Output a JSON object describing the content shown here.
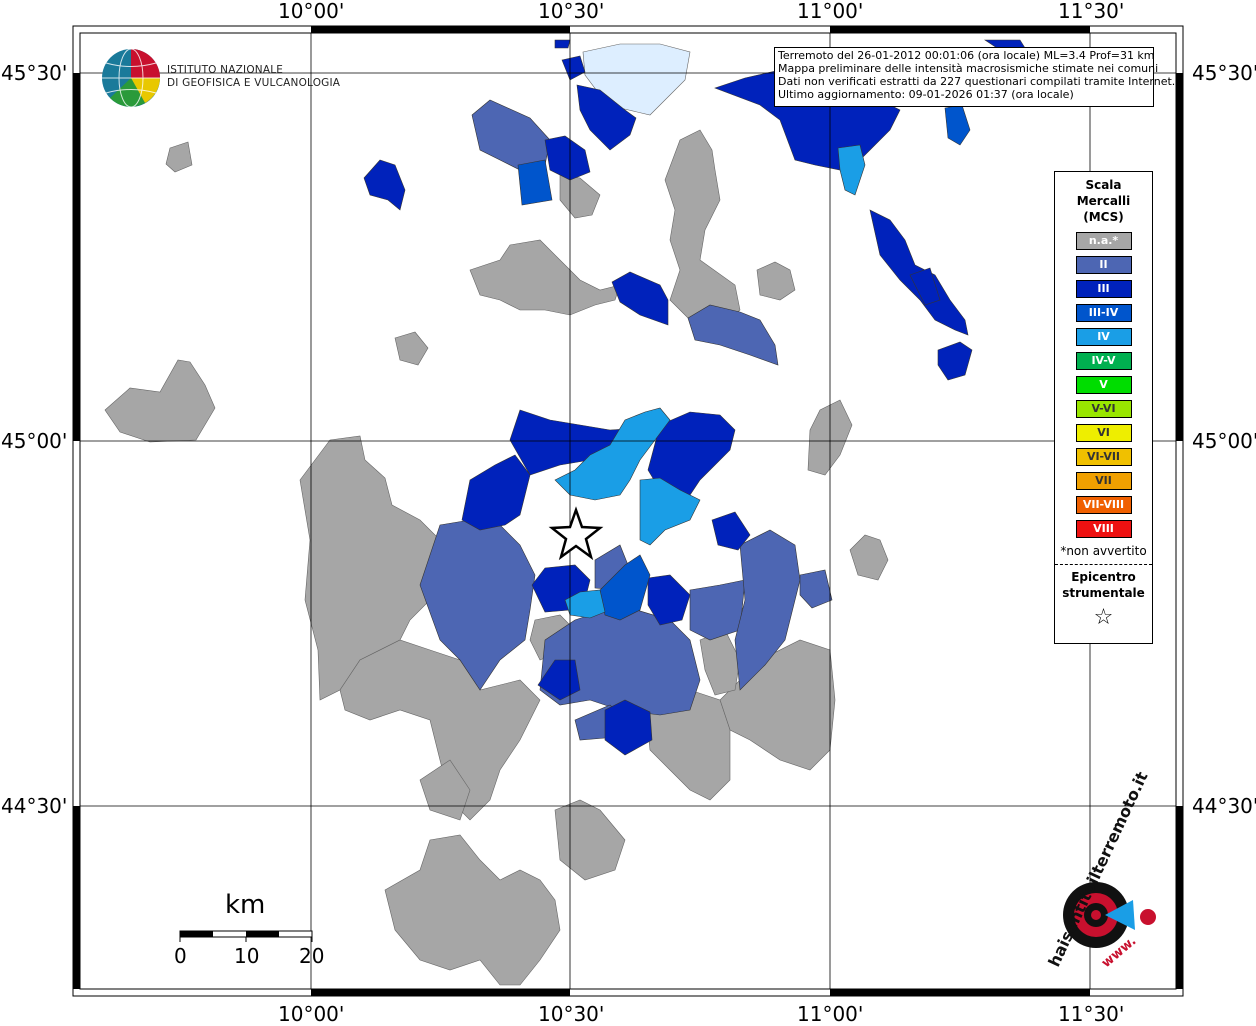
{
  "map": {
    "lon_ticks": [
      "10°00'",
      "10°30'",
      "11°00'",
      "11°30'"
    ],
    "lat_ticks_left": [
      "45°30'",
      "45°00'",
      "44°30'"
    ],
    "lat_ticks_right": [
      "45°30'",
      "45°00'",
      "44°30'"
    ],
    "epicenter_icon": "star-icon",
    "colors": {
      "na": "#a6a6a6",
      "II": "#4d66b3",
      "III": "#0022bb",
      "III-IV": "#0055cc",
      "IV": "#1a9ee6",
      "lightest": "#ddeeff"
    }
  },
  "institute": {
    "line1": "ISTITUTO NAZIONALE",
    "line2": "DI GEOFISICA E VULCANOLOGIA"
  },
  "info": {
    "line1": "Terremoto del 26-01-2012 00:01:06 (ora locale) ML=3.4 Prof=31 km",
    "line2": "Mappa preliminare delle intensità macrosismiche stimate nei comuni",
    "line3": "Dati non verificati estratti da 227 questionari compilati tramite Internet.",
    "line4": "Ultimo aggiornamento: 09-01-2026 01:37 (ora locale)"
  },
  "legend": {
    "title1": "Scala",
    "title2": "Mercalli",
    "title3": "(MCS)",
    "items": [
      {
        "label": "n.a.*",
        "color": "#a6a6a6"
      },
      {
        "label": "II",
        "color": "#4d66b3"
      },
      {
        "label": "III",
        "color": "#0022bb"
      },
      {
        "label": "III-IV",
        "color": "#0055cc"
      },
      {
        "label": "IV",
        "color": "#1a9ee6"
      },
      {
        "label": "IV-V",
        "color": "#00b050"
      },
      {
        "label": "V",
        "color": "#00dd00"
      },
      {
        "label": "V-VI",
        "color": "#99e600"
      },
      {
        "label": "VI",
        "color": "#eeee00"
      },
      {
        "label": "VI-VII",
        "color": "#f0c000"
      },
      {
        "label": "VII",
        "color": "#f0a000"
      },
      {
        "label": "VII-VIII",
        "color": "#f06000"
      },
      {
        "label": "VIII",
        "color": "#ee1111"
      }
    ],
    "note": "*non avvertito",
    "epicenter1": "Epicentro",
    "epicenter2": "strumentale",
    "epicenter_symbol": "☆"
  },
  "scale": {
    "unit": "km",
    "labels": [
      "0",
      "10",
      "20"
    ]
  },
  "brand": {
    "text": "haisentitoilterremoto.it",
    "www": "www."
  }
}
